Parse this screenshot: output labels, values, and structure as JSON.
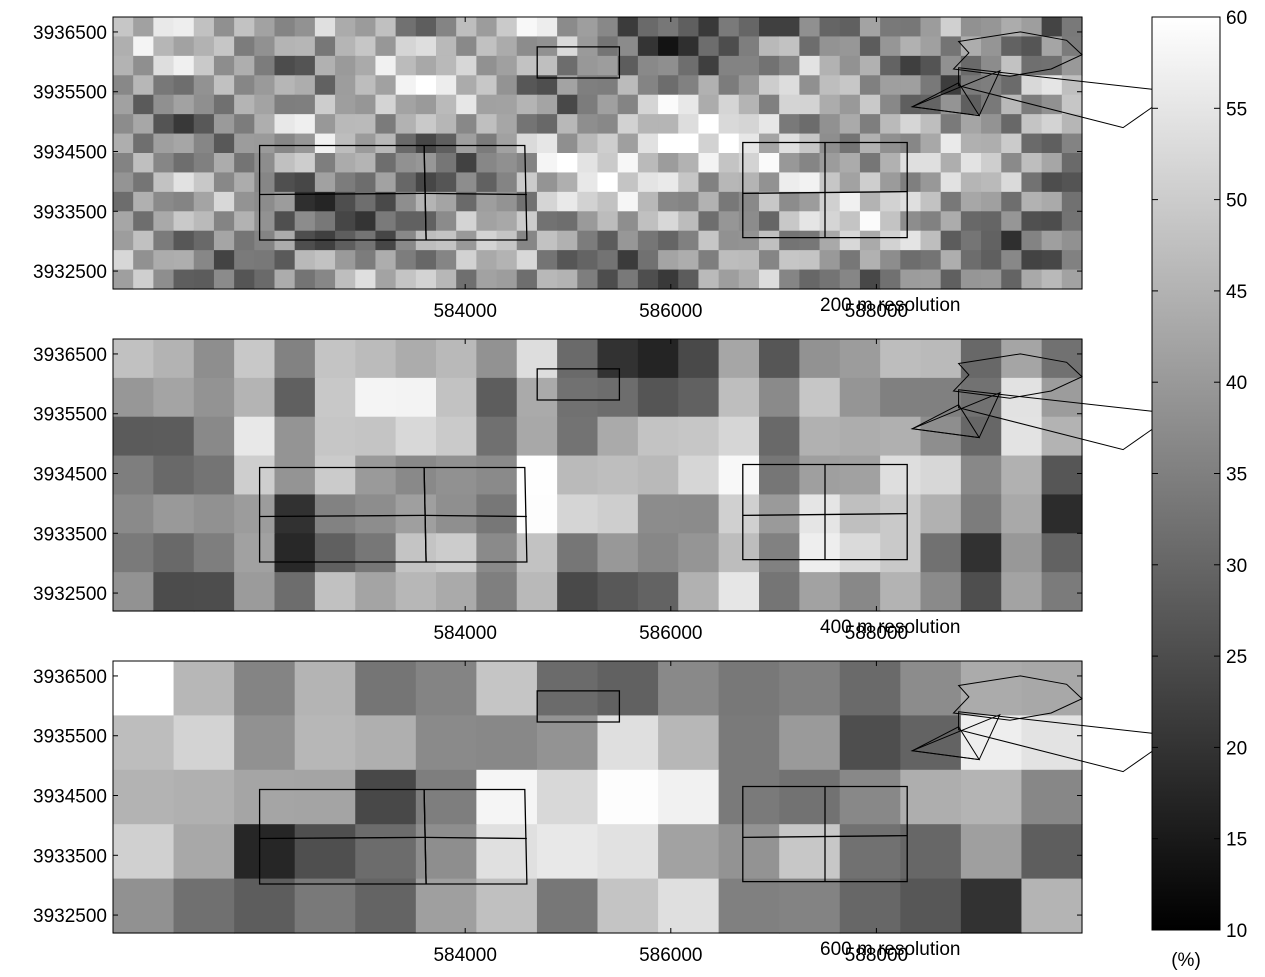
{
  "chart_data": {
    "type": "heatmap",
    "x_ticks": [
      584000,
      586000,
      588000
    ],
    "y_ticks": [
      3932500,
      3933500,
      3934500,
      3935500,
      3936500
    ],
    "colorscale": "gray",
    "colorbar": {
      "min": 10,
      "max": 60,
      "ticks": [
        10,
        15,
        20,
        25,
        30,
        35,
        40,
        45,
        50,
        55,
        60
      ],
      "unit": "(%)"
    },
    "panels": [
      {
        "label": "200 m resolution",
        "resolution_m": 200,
        "cols": 48,
        "rows": 14
      },
      {
        "label": "400 m resolution",
        "resolution_m": 400,
        "cols": 24,
        "rows": 7
      },
      {
        "label": "600 m resolution",
        "resolution_m": 600,
        "cols": 16,
        "rows": 5
      }
    ]
  }
}
